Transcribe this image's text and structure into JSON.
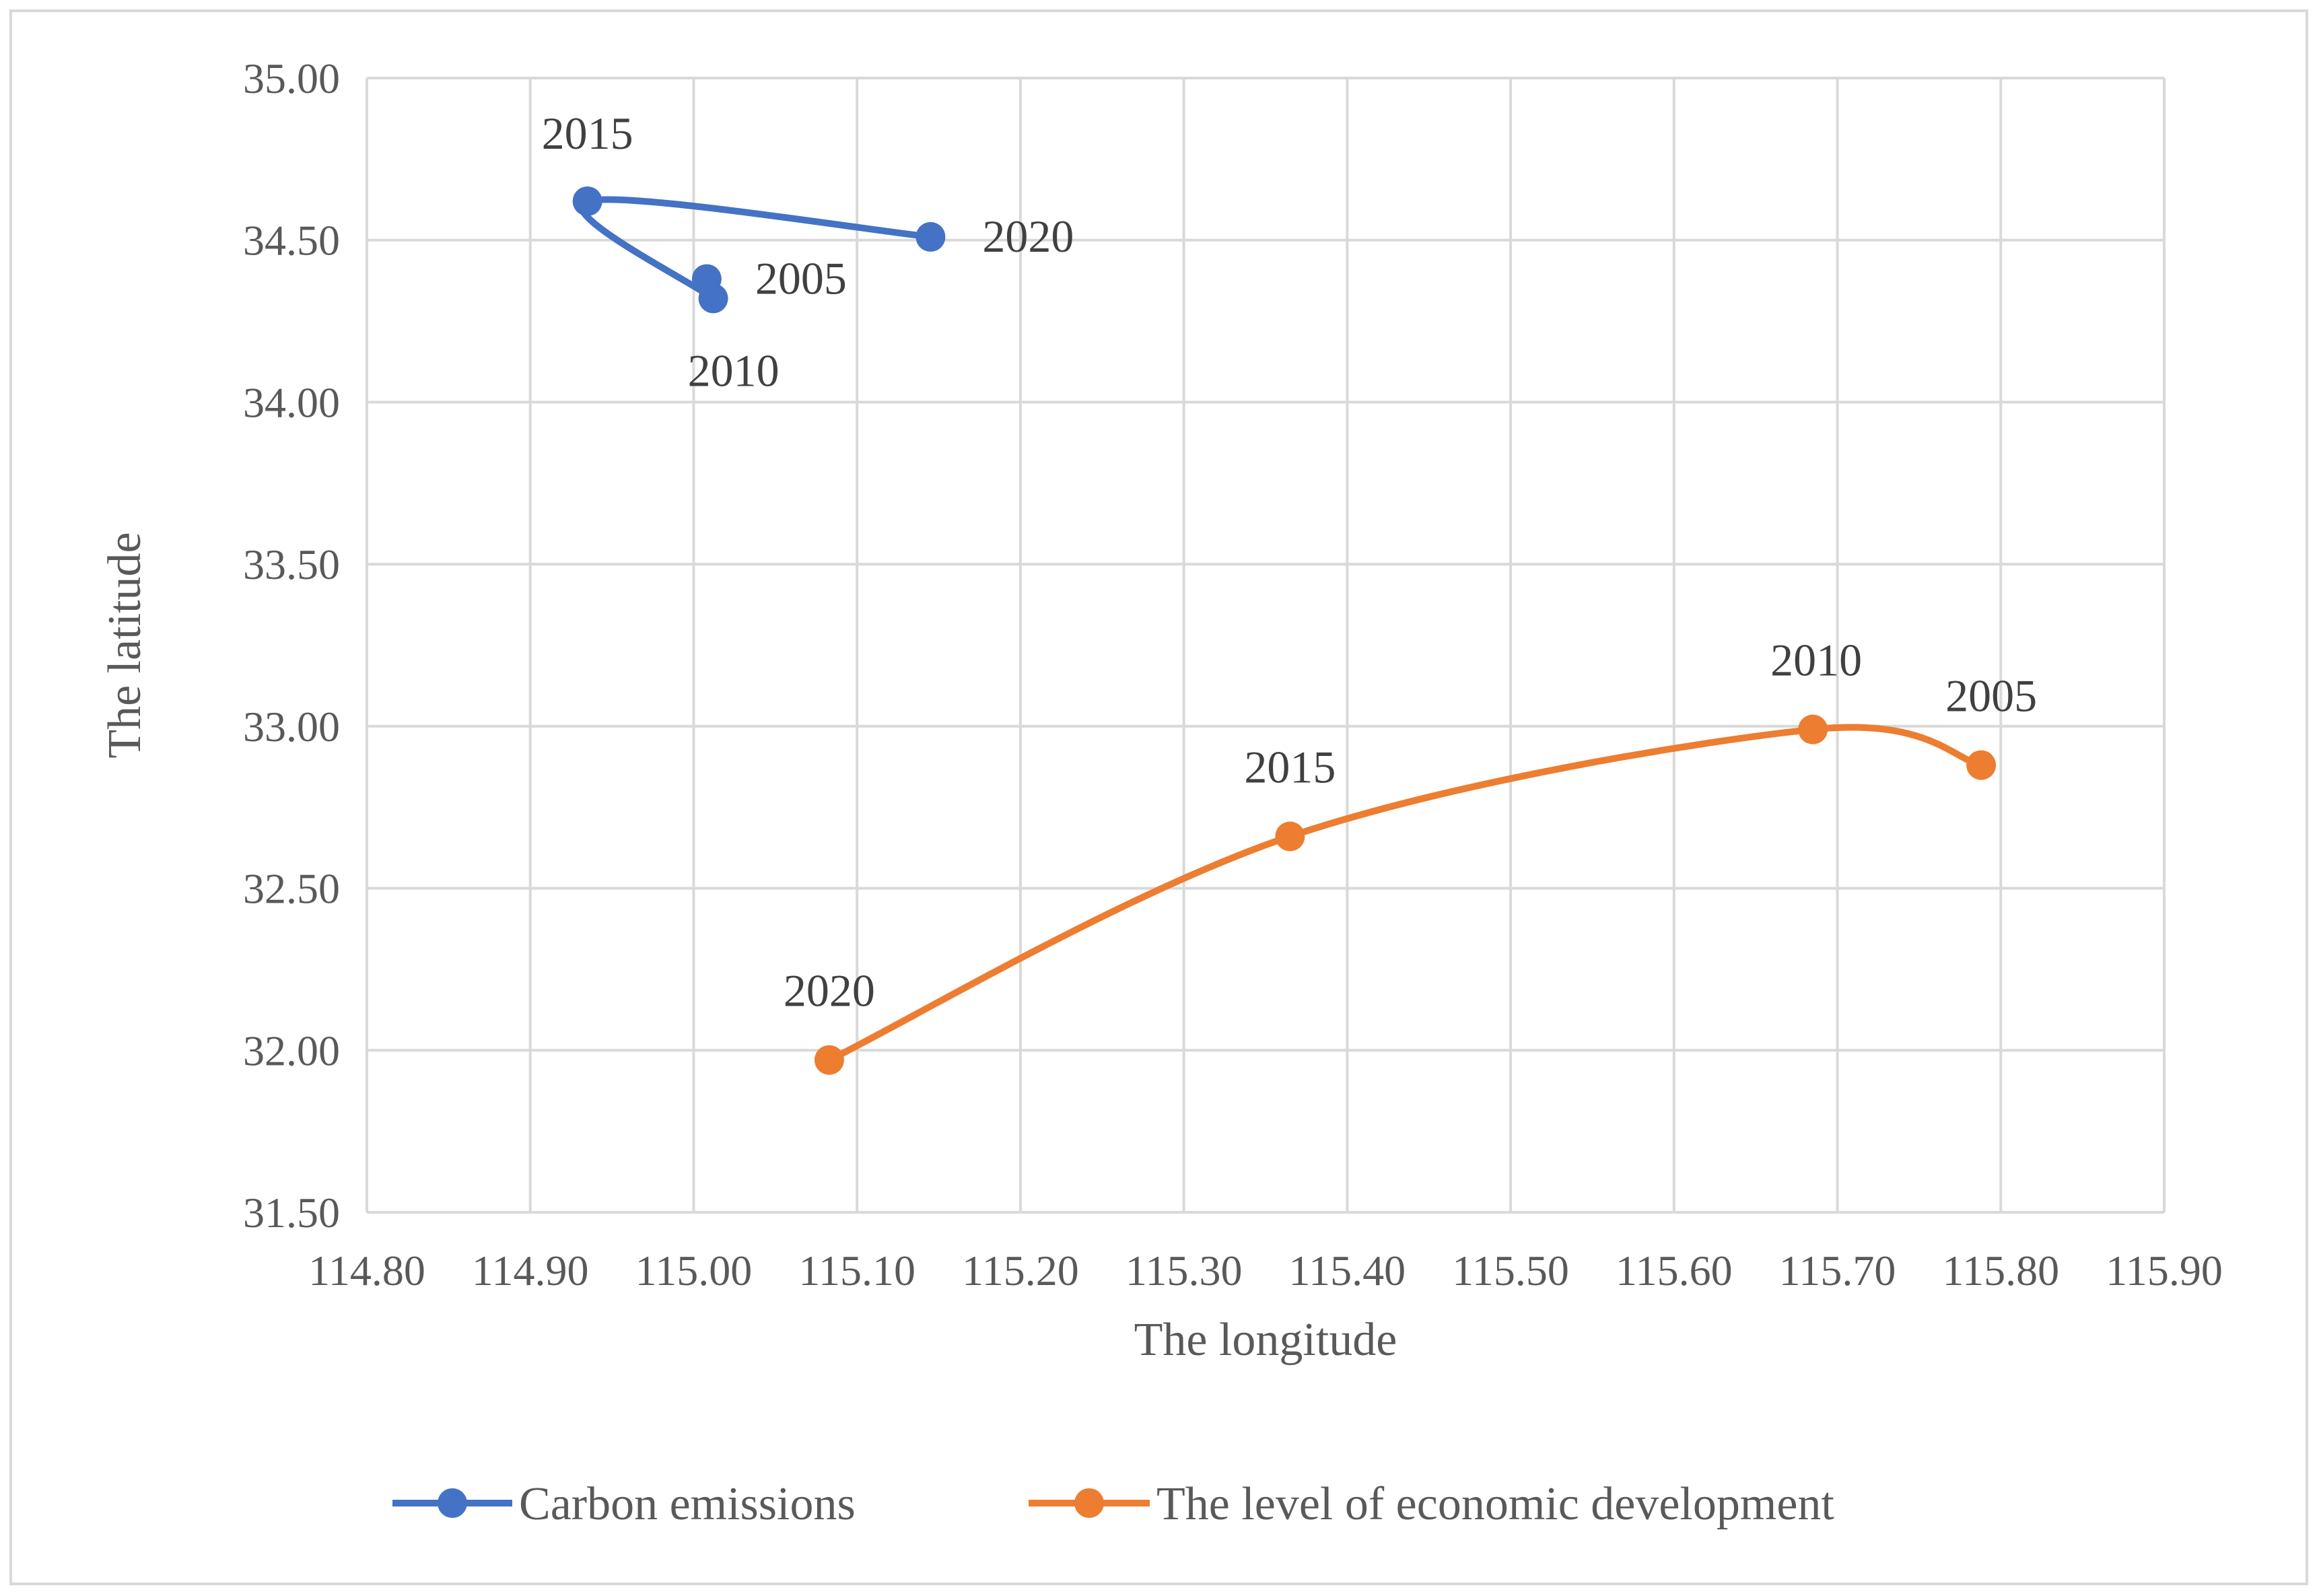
{
  "chart_data": {
    "type": "scatter",
    "title": "",
    "xlabel": "The longitude",
    "ylabel": "The latitude",
    "xlim": [
      114.8,
      115.9
    ],
    "ylim": [
      31.5,
      35.0
    ],
    "xticks": [
      "114.80",
      "114.90",
      "115.00",
      "115.10",
      "115.20",
      "115.30",
      "115.40",
      "115.50",
      "115.60",
      "115.70",
      "115.80",
      "115.90"
    ],
    "yticks": [
      "31.50",
      "32.00",
      "32.50",
      "33.00",
      "33.50",
      "34.00",
      "34.50",
      "35.00"
    ],
    "grid": true,
    "legend_position": "bottom",
    "series": [
      {
        "name": "Carbon emissions",
        "color": "#4472C4",
        "points": [
          {
            "label": "2005",
            "x": 115.008,
            "y": 34.38
          },
          {
            "label": "2010",
            "x": 115.012,
            "y": 34.32
          },
          {
            "label": "2015",
            "x": 114.935,
            "y": 34.62
          },
          {
            "label": "2020",
            "x": 115.145,
            "y": 34.51
          }
        ],
        "path_order": [
          "2010",
          "2015",
          "2020"
        ]
      },
      {
        "name": "The level of economic development",
        "color": "#ED7D31",
        "points": [
          {
            "label": "2005",
            "x": 115.788,
            "y": 32.88
          },
          {
            "label": "2010",
            "x": 115.685,
            "y": 32.99
          },
          {
            "label": "2015",
            "x": 115.365,
            "y": 32.66
          },
          {
            "label": "2020",
            "x": 115.083,
            "y": 31.97
          }
        ],
        "path_order": [
          "2005",
          "2010",
          "2015",
          "2020"
        ]
      }
    ]
  }
}
